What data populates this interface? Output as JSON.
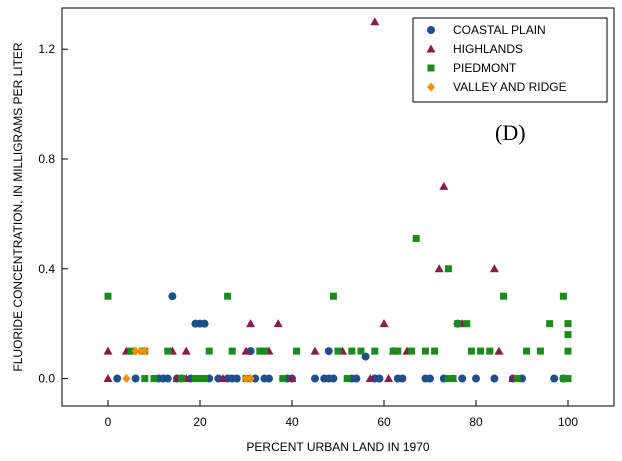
{
  "chart_data": {
    "type": "scatter",
    "panel_label": "(D)",
    "xlabel": "PERCENT URBAN LAND IN 1970",
    "ylabel": "FLUORIDE CONCENTRATION, IN MILLIGRAMS PER LITER",
    "xlim": [
      -10,
      110
    ],
    "ylim": [
      -0.1,
      1.35
    ],
    "xticks": [
      0,
      20,
      40,
      60,
      80,
      100
    ],
    "yticks": [
      0.0,
      0.4,
      0.8,
      1.2
    ],
    "xtick_labels": [
      "0",
      "20",
      "40",
      "60",
      "80",
      "100"
    ],
    "ytick_labels": [
      "0.0",
      "0.4",
      "0.8",
      "1.2"
    ],
    "grid": false,
    "legend_position": "top-right",
    "series": [
      {
        "name": "COASTAL PLAIN",
        "marker": "circle",
        "color": "#1f4e8c",
        "points": [
          [
            2,
            0.0
          ],
          [
            6,
            0.0
          ],
          [
            11,
            0.0
          ],
          [
            12,
            0.0
          ],
          [
            13,
            0.0
          ],
          [
            14,
            0.3
          ],
          [
            15,
            0.0
          ],
          [
            16,
            0.0
          ],
          [
            18,
            0.0
          ],
          [
            19,
            0.2
          ],
          [
            20,
            0.2
          ],
          [
            21,
            0.2
          ],
          [
            22,
            0.0
          ],
          [
            24,
            0.0
          ],
          [
            26,
            0.0
          ],
          [
            27,
            0.0
          ],
          [
            28,
            0.0
          ],
          [
            31,
            0.1
          ],
          [
            32,
            0.0
          ],
          [
            34,
            0.0
          ],
          [
            35,
            0.0
          ],
          [
            39,
            0.0
          ],
          [
            40,
            0.0
          ],
          [
            45,
            0.0
          ],
          [
            47,
            0.0
          ],
          [
            48,
            0.0
          ],
          [
            48,
            0.1
          ],
          [
            49,
            0.0
          ],
          [
            53,
            0.0
          ],
          [
            54,
            0.0
          ],
          [
            56,
            0.08
          ],
          [
            58,
            0.0
          ],
          [
            59,
            0.0
          ],
          [
            63,
            0.0
          ],
          [
            64,
            0.0
          ],
          [
            69,
            0.0
          ],
          [
            70,
            0.0
          ],
          [
            73,
            0.0
          ],
          [
            76,
            0.2
          ],
          [
            77,
            0.0
          ],
          [
            80,
            0.0
          ],
          [
            84,
            0.0
          ],
          [
            88,
            0.0
          ],
          [
            90,
            0.0
          ],
          [
            97,
            0.0
          ],
          [
            99,
            0.0
          ]
        ]
      },
      {
        "name": "HIGHLANDS",
        "marker": "triangle",
        "color": "#8b1a4a",
        "points": [
          [
            0,
            0.1
          ],
          [
            0,
            0.0
          ],
          [
            4,
            0.1
          ],
          [
            14,
            0.1
          ],
          [
            15,
            0.0
          ],
          [
            17,
            0.0
          ],
          [
            17,
            0.1
          ],
          [
            25,
            0.0
          ],
          [
            30,
            0.1
          ],
          [
            31,
            0.2
          ],
          [
            35,
            0.1
          ],
          [
            37,
            0.2
          ],
          [
            40,
            0.0
          ],
          [
            45,
            0.1
          ],
          [
            51,
            0.1
          ],
          [
            57,
            0.0
          ],
          [
            58,
            1.3
          ],
          [
            60,
            0.2
          ],
          [
            61,
            0.0
          ],
          [
            62,
            0.1
          ],
          [
            65,
            0.1
          ],
          [
            72,
            0.4
          ],
          [
            73,
            0.7
          ],
          [
            75,
            0.0
          ],
          [
            77,
            0.2
          ],
          [
            84,
            0.4
          ],
          [
            85,
            0.1
          ],
          [
            88,
            0.0
          ]
        ]
      },
      {
        "name": "PIEDMONT",
        "marker": "square",
        "color": "#1a8c1a",
        "points": [
          [
            0,
            0.3
          ],
          [
            5,
            0.1
          ],
          [
            8,
            0.1
          ],
          [
            8,
            0.0
          ],
          [
            10,
            0.0
          ],
          [
            13,
            0.1
          ],
          [
            16,
            0.0
          ],
          [
            19,
            0.0
          ],
          [
            20,
            0.0
          ],
          [
            21,
            0.0
          ],
          [
            22,
            0.1
          ],
          [
            26,
            0.3
          ],
          [
            27,
            0.1
          ],
          [
            30,
            0.0
          ],
          [
            33,
            0.1
          ],
          [
            34,
            0.1
          ],
          [
            38,
            0.0
          ],
          [
            41,
            0.1
          ],
          [
            49,
            0.3
          ],
          [
            50,
            0.1
          ],
          [
            52,
            0.0
          ],
          [
            53,
            0.1
          ],
          [
            55,
            0.1
          ],
          [
            58,
            0.1
          ],
          [
            62,
            0.1
          ],
          [
            63,
            0.1
          ],
          [
            66,
            0.1
          ],
          [
            67,
            0.51
          ],
          [
            69,
            0.1
          ],
          [
            71,
            0.1
          ],
          [
            74,
            0.0
          ],
          [
            74,
            0.4
          ],
          [
            75,
            0.0
          ],
          [
            76,
            0.2
          ],
          [
            78,
            0.2
          ],
          [
            79,
            0.1
          ],
          [
            81,
            0.1
          ],
          [
            83,
            0.1
          ],
          [
            86,
            0.3
          ],
          [
            89,
            0.0
          ],
          [
            91,
            0.1
          ],
          [
            94,
            0.1
          ],
          [
            96,
            0.2
          ],
          [
            99,
            0.3
          ],
          [
            100,
            0.2
          ],
          [
            100,
            0.1
          ],
          [
            100,
            0.16
          ],
          [
            100,
            0.0
          ],
          [
            99,
            0.0
          ]
        ]
      },
      {
        "name": "VALLEY AND RIDGE",
        "marker": "diamond",
        "color": "#ff8c00",
        "points": [
          [
            4,
            0.0
          ],
          [
            6,
            0.1
          ],
          [
            7,
            0.1
          ],
          [
            8,
            0.1
          ],
          [
            30,
            0.0
          ],
          [
            31,
            0.0
          ]
        ]
      }
    ]
  },
  "colors": {
    "coastal_plain": "#1f4e8c",
    "highlands": "#8b1a4a",
    "piedmont": "#1a8c1a",
    "valley_and_ridge": "#ff8c00"
  }
}
